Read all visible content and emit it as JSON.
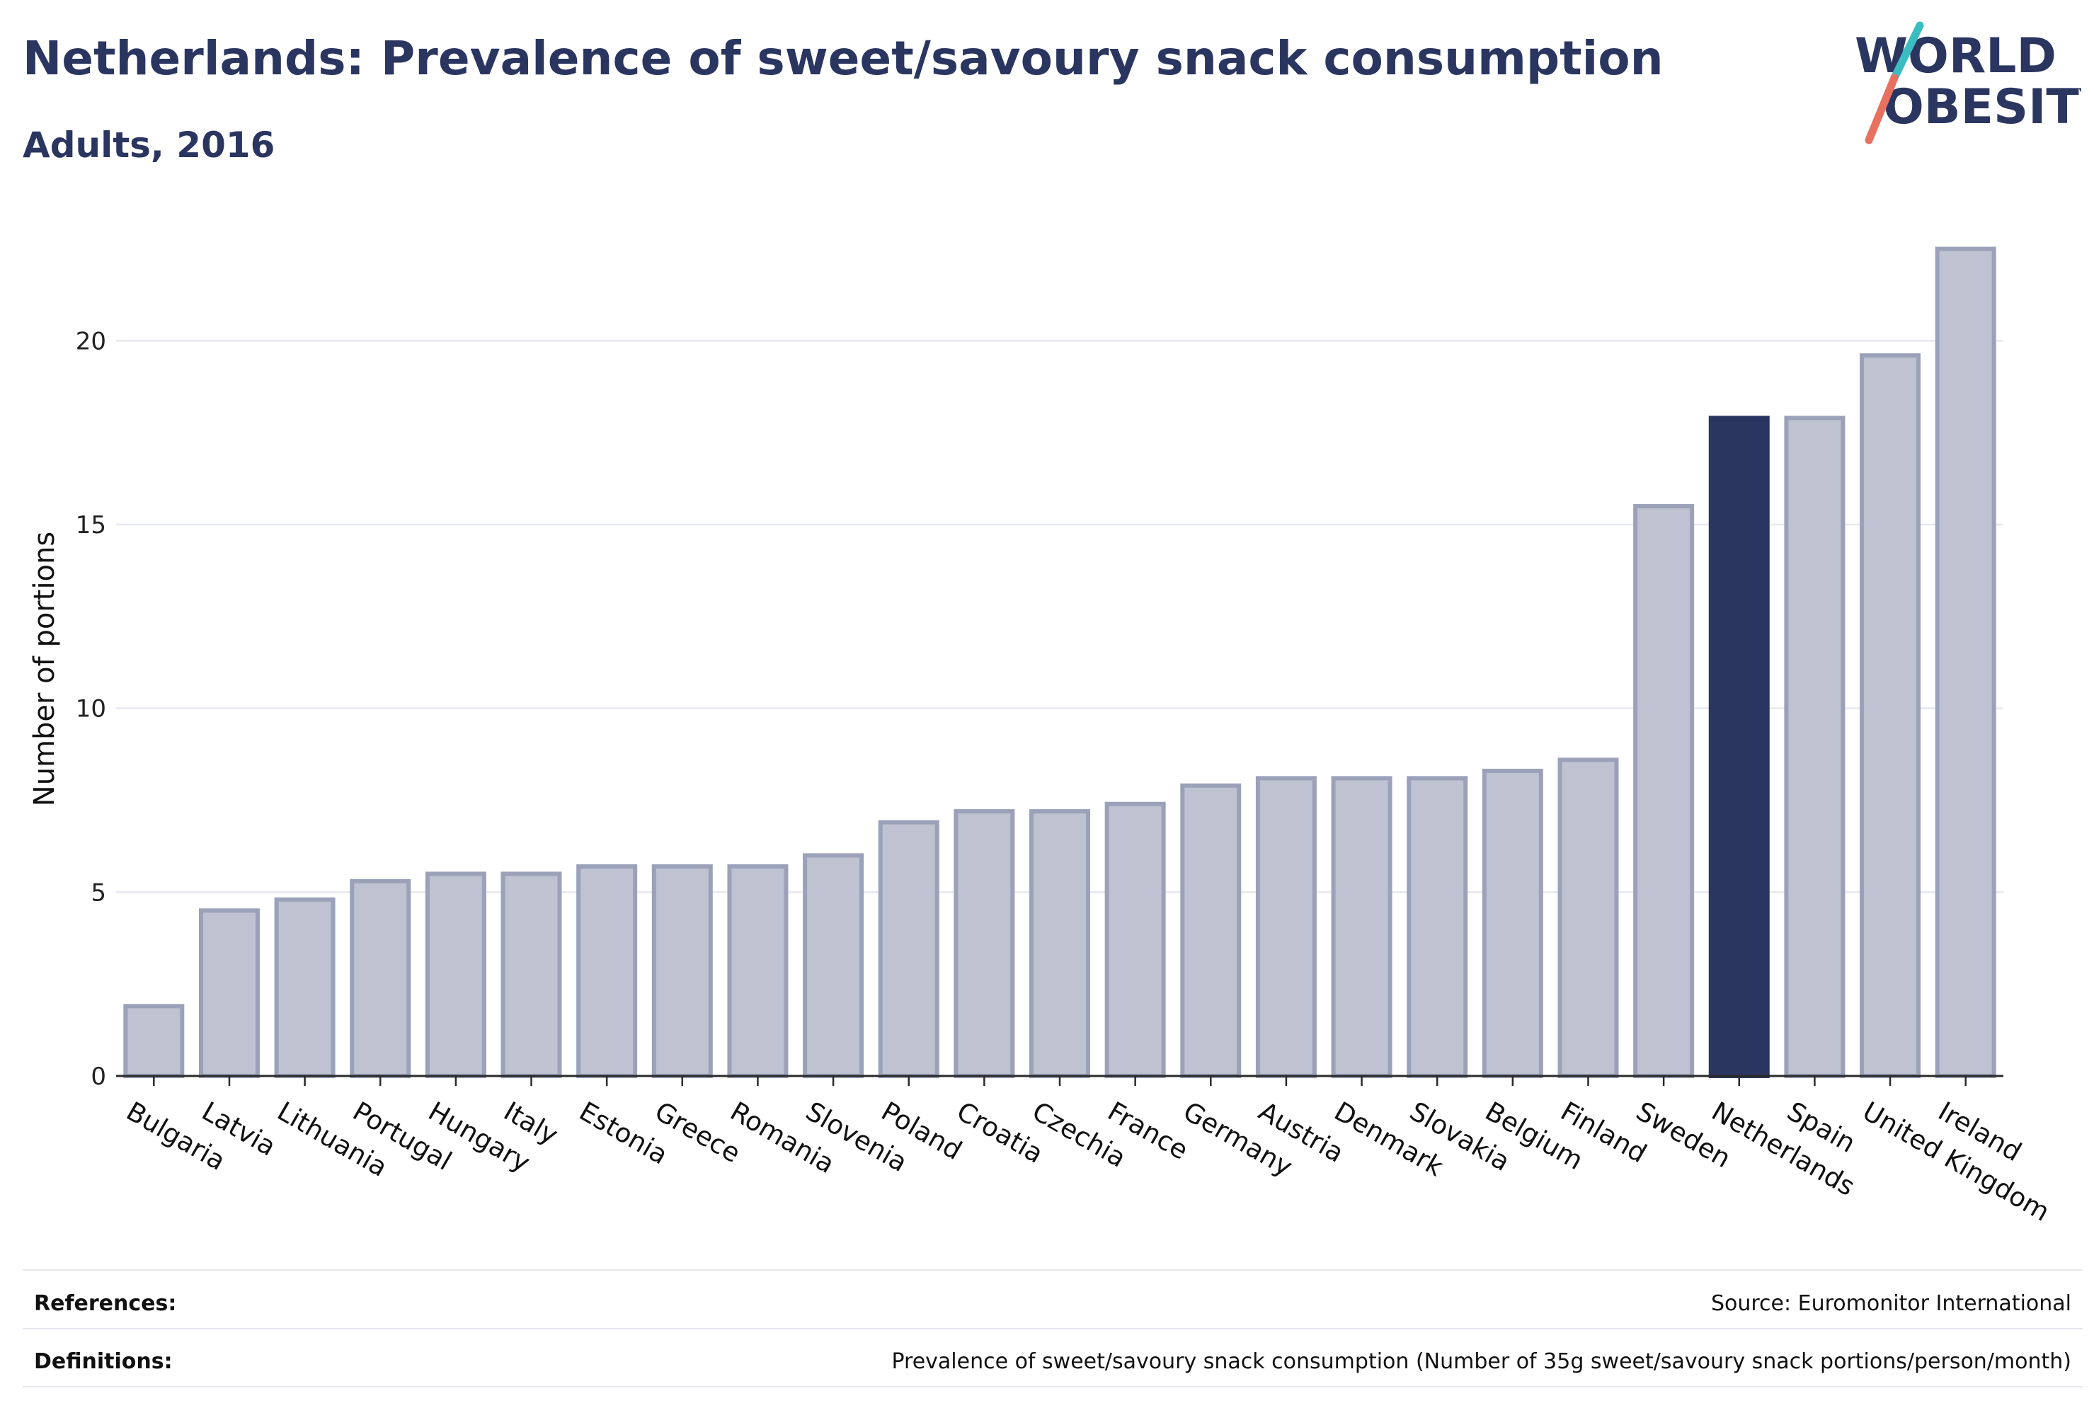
{
  "header": {
    "title": "Netherlands: Prevalence of sweet/savoury snack consumption",
    "subtitle": "Adults, 2016"
  },
  "logo": {
    "line1": "WORLD",
    "line2": "OBESITY",
    "accent_teal": "#3bbcc0",
    "accent_coral": "#e8705f",
    "text_color": "#2a3560"
  },
  "colors": {
    "bar_default": "#bec2d1",
    "bar_default_stroke": "#9aa1b8",
    "bar_highlight": "#2a3560",
    "grid": "#e6e8ee",
    "axis": "#2a2a2a"
  },
  "chart_data": {
    "type": "bar",
    "title": "Netherlands: Prevalence of sweet/savoury snack consumption",
    "subtitle": "Adults, 2016",
    "xlabel": "",
    "ylabel": "Number of portions",
    "ylim": [
      0,
      23.3
    ],
    "yticks": [
      0,
      5,
      10,
      15,
      20
    ],
    "grid": true,
    "highlight": "Netherlands",
    "categories": [
      "Bulgaria",
      "Latvia",
      "Lithuania",
      "Portugal",
      "Hungary",
      "Italy",
      "Estonia",
      "Greece",
      "Romania",
      "Slovenia",
      "Poland",
      "Croatia",
      "Czechia",
      "France",
      "Germany",
      "Austria",
      "Denmark",
      "Slovakia",
      "Belgium",
      "Finland",
      "Sweden",
      "Netherlands",
      "Spain",
      "United Kingdom",
      "Ireland"
    ],
    "values": [
      1.9,
      4.5,
      4.8,
      5.3,
      5.5,
      5.5,
      5.7,
      5.7,
      5.7,
      6.0,
      6.9,
      7.2,
      7.2,
      7.4,
      7.9,
      8.1,
      8.1,
      8.1,
      8.3,
      8.6,
      15.5,
      17.9,
      17.9,
      19.6,
      22.5
    ]
  },
  "footer": {
    "references_label": "References:",
    "references_value": "Source: Euromonitor International",
    "definitions_label": "Definitions:",
    "definitions_value": "Prevalence of sweet/savoury snack consumption (Number of 35g sweet/savoury snack portions/person/month)"
  }
}
